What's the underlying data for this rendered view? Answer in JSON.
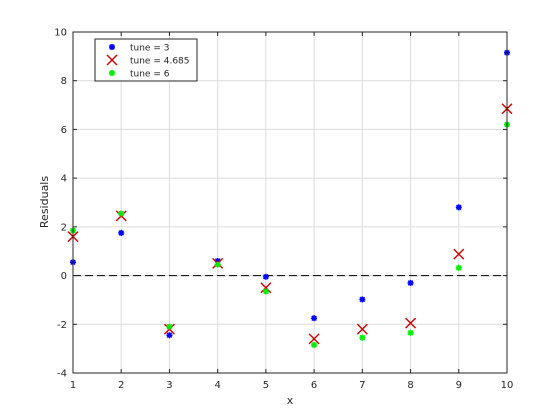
{
  "chart_data": {
    "type": "scatter",
    "title": "",
    "xlabel": "x",
    "ylabel": "Residuals",
    "xlim": [
      1,
      10
    ],
    "ylim": [
      -4,
      10
    ],
    "xticks": [
      1,
      2,
      3,
      4,
      5,
      6,
      7,
      8,
      9,
      10
    ],
    "yticks": [
      -4,
      -2,
      0,
      2,
      4,
      6,
      8,
      10
    ],
    "grid": true,
    "legend_position": "top-left",
    "reference_line": {
      "y": 0,
      "style": "dashed",
      "color": "#000000"
    },
    "x": [
      1,
      2,
      3,
      4,
      5,
      6,
      7,
      8,
      9,
      10
    ],
    "series": [
      {
        "name": "tune = 3",
        "marker": "asterisk",
        "color": "#0000ff",
        "values": [
          0.55,
          1.75,
          -2.45,
          0.6,
          -0.05,
          -1.75,
          -0.98,
          -0.3,
          2.8,
          9.15
        ]
      },
      {
        "name": "tune = 4.685",
        "marker": "x",
        "color": "#cc0000",
        "values": [
          1.6,
          2.45,
          -2.2,
          0.5,
          -0.5,
          -2.6,
          -2.2,
          -1.95,
          0.88,
          6.85
        ]
      },
      {
        "name": "tune = 6",
        "marker": "asterisk",
        "color": "#00ee00",
        "values": [
          1.85,
          2.55,
          -2.1,
          0.45,
          -0.65,
          -2.85,
          -2.55,
          -2.35,
          0.32,
          6.2
        ]
      }
    ]
  }
}
